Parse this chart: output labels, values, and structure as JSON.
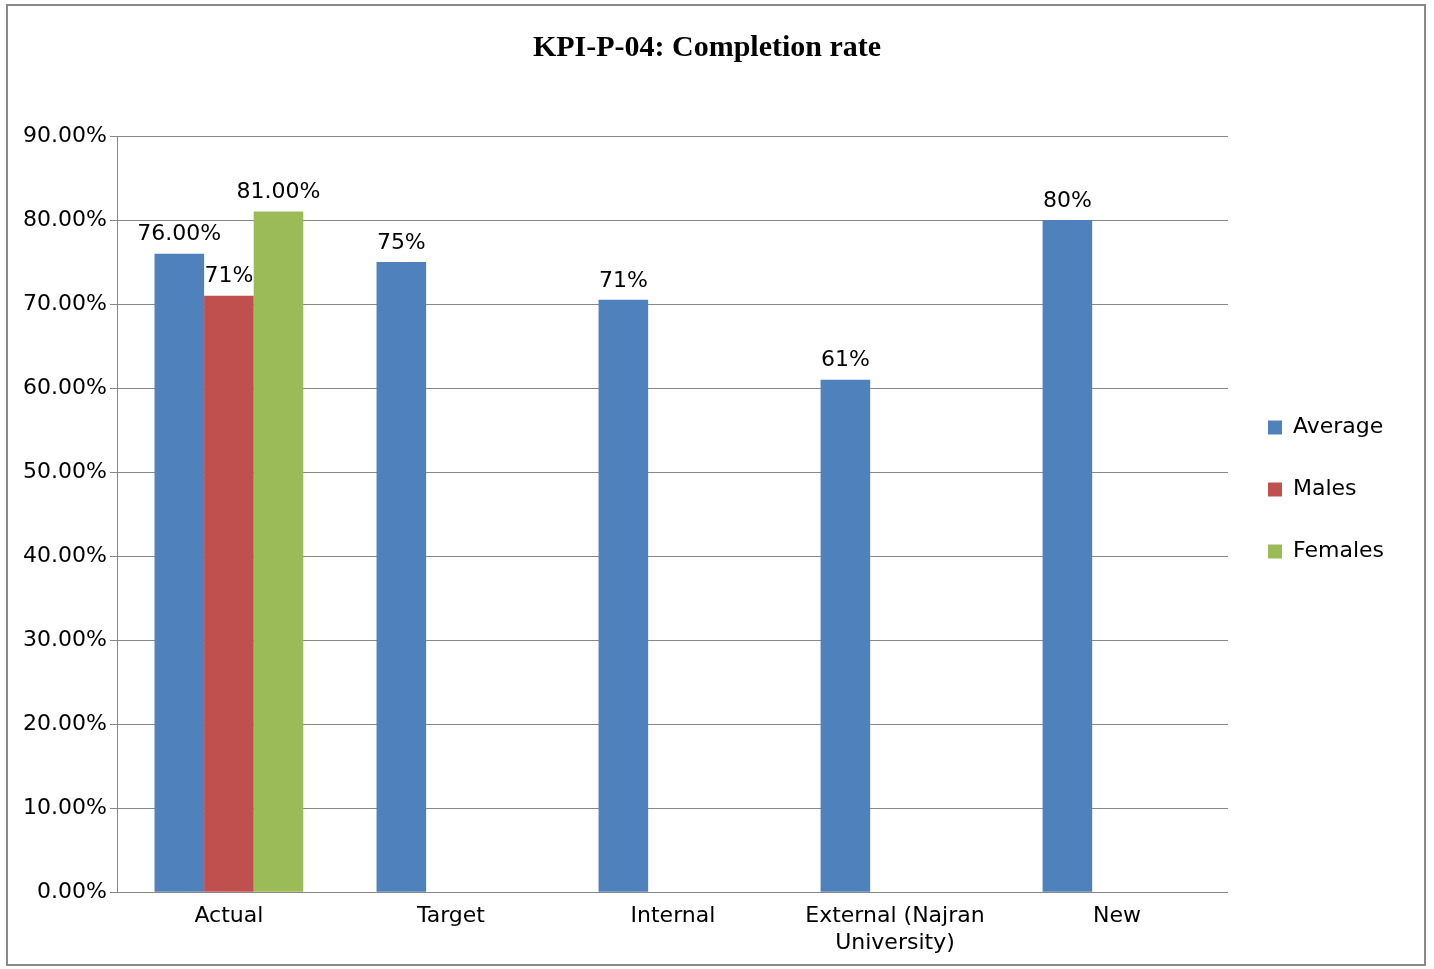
{
  "chart_data": {
    "type": "bar",
    "title": "KPI-P-04: Completion rate",
    "categories": [
      "Actual",
      "Target",
      "Internal",
      "External (Najran University)",
      "New"
    ],
    "series": [
      {
        "name": "Average",
        "color": "#4f81bd",
        "values": [
          76,
          75,
          70.5,
          61,
          80
        ],
        "value_labels": [
          "76.00%",
          "75%",
          "71%",
          "61%",
          "80%"
        ]
      },
      {
        "name": "Males",
        "color": "#c0504d",
        "values": [
          71,
          null,
          null,
          null,
          null
        ],
        "value_labels": [
          "71%",
          null,
          null,
          null,
          null
        ]
      },
      {
        "name": "Females",
        "color": "#9bbb59",
        "values": [
          81,
          null,
          null,
          null,
          null
        ],
        "value_labels": [
          "81.00%",
          null,
          null,
          null,
          null
        ]
      }
    ],
    "ylim": [
      0,
      90
    ],
    "yticks": [
      {
        "value": 0,
        "label": "0.00%"
      },
      {
        "value": 10,
        "label": "10.00%"
      },
      {
        "value": 20,
        "label": "20.00%"
      },
      {
        "value": 30,
        "label": "30.00%"
      },
      {
        "value": 40,
        "label": "40.00%"
      },
      {
        "value": 50,
        "label": "50.00%"
      },
      {
        "value": 60,
        "label": "60.00%"
      },
      {
        "value": 70,
        "label": "70.00%"
      },
      {
        "value": 80,
        "label": "80.00%"
      },
      {
        "value": 90,
        "label": "90.00%"
      }
    ],
    "grid": "y",
    "legend": "right"
  }
}
